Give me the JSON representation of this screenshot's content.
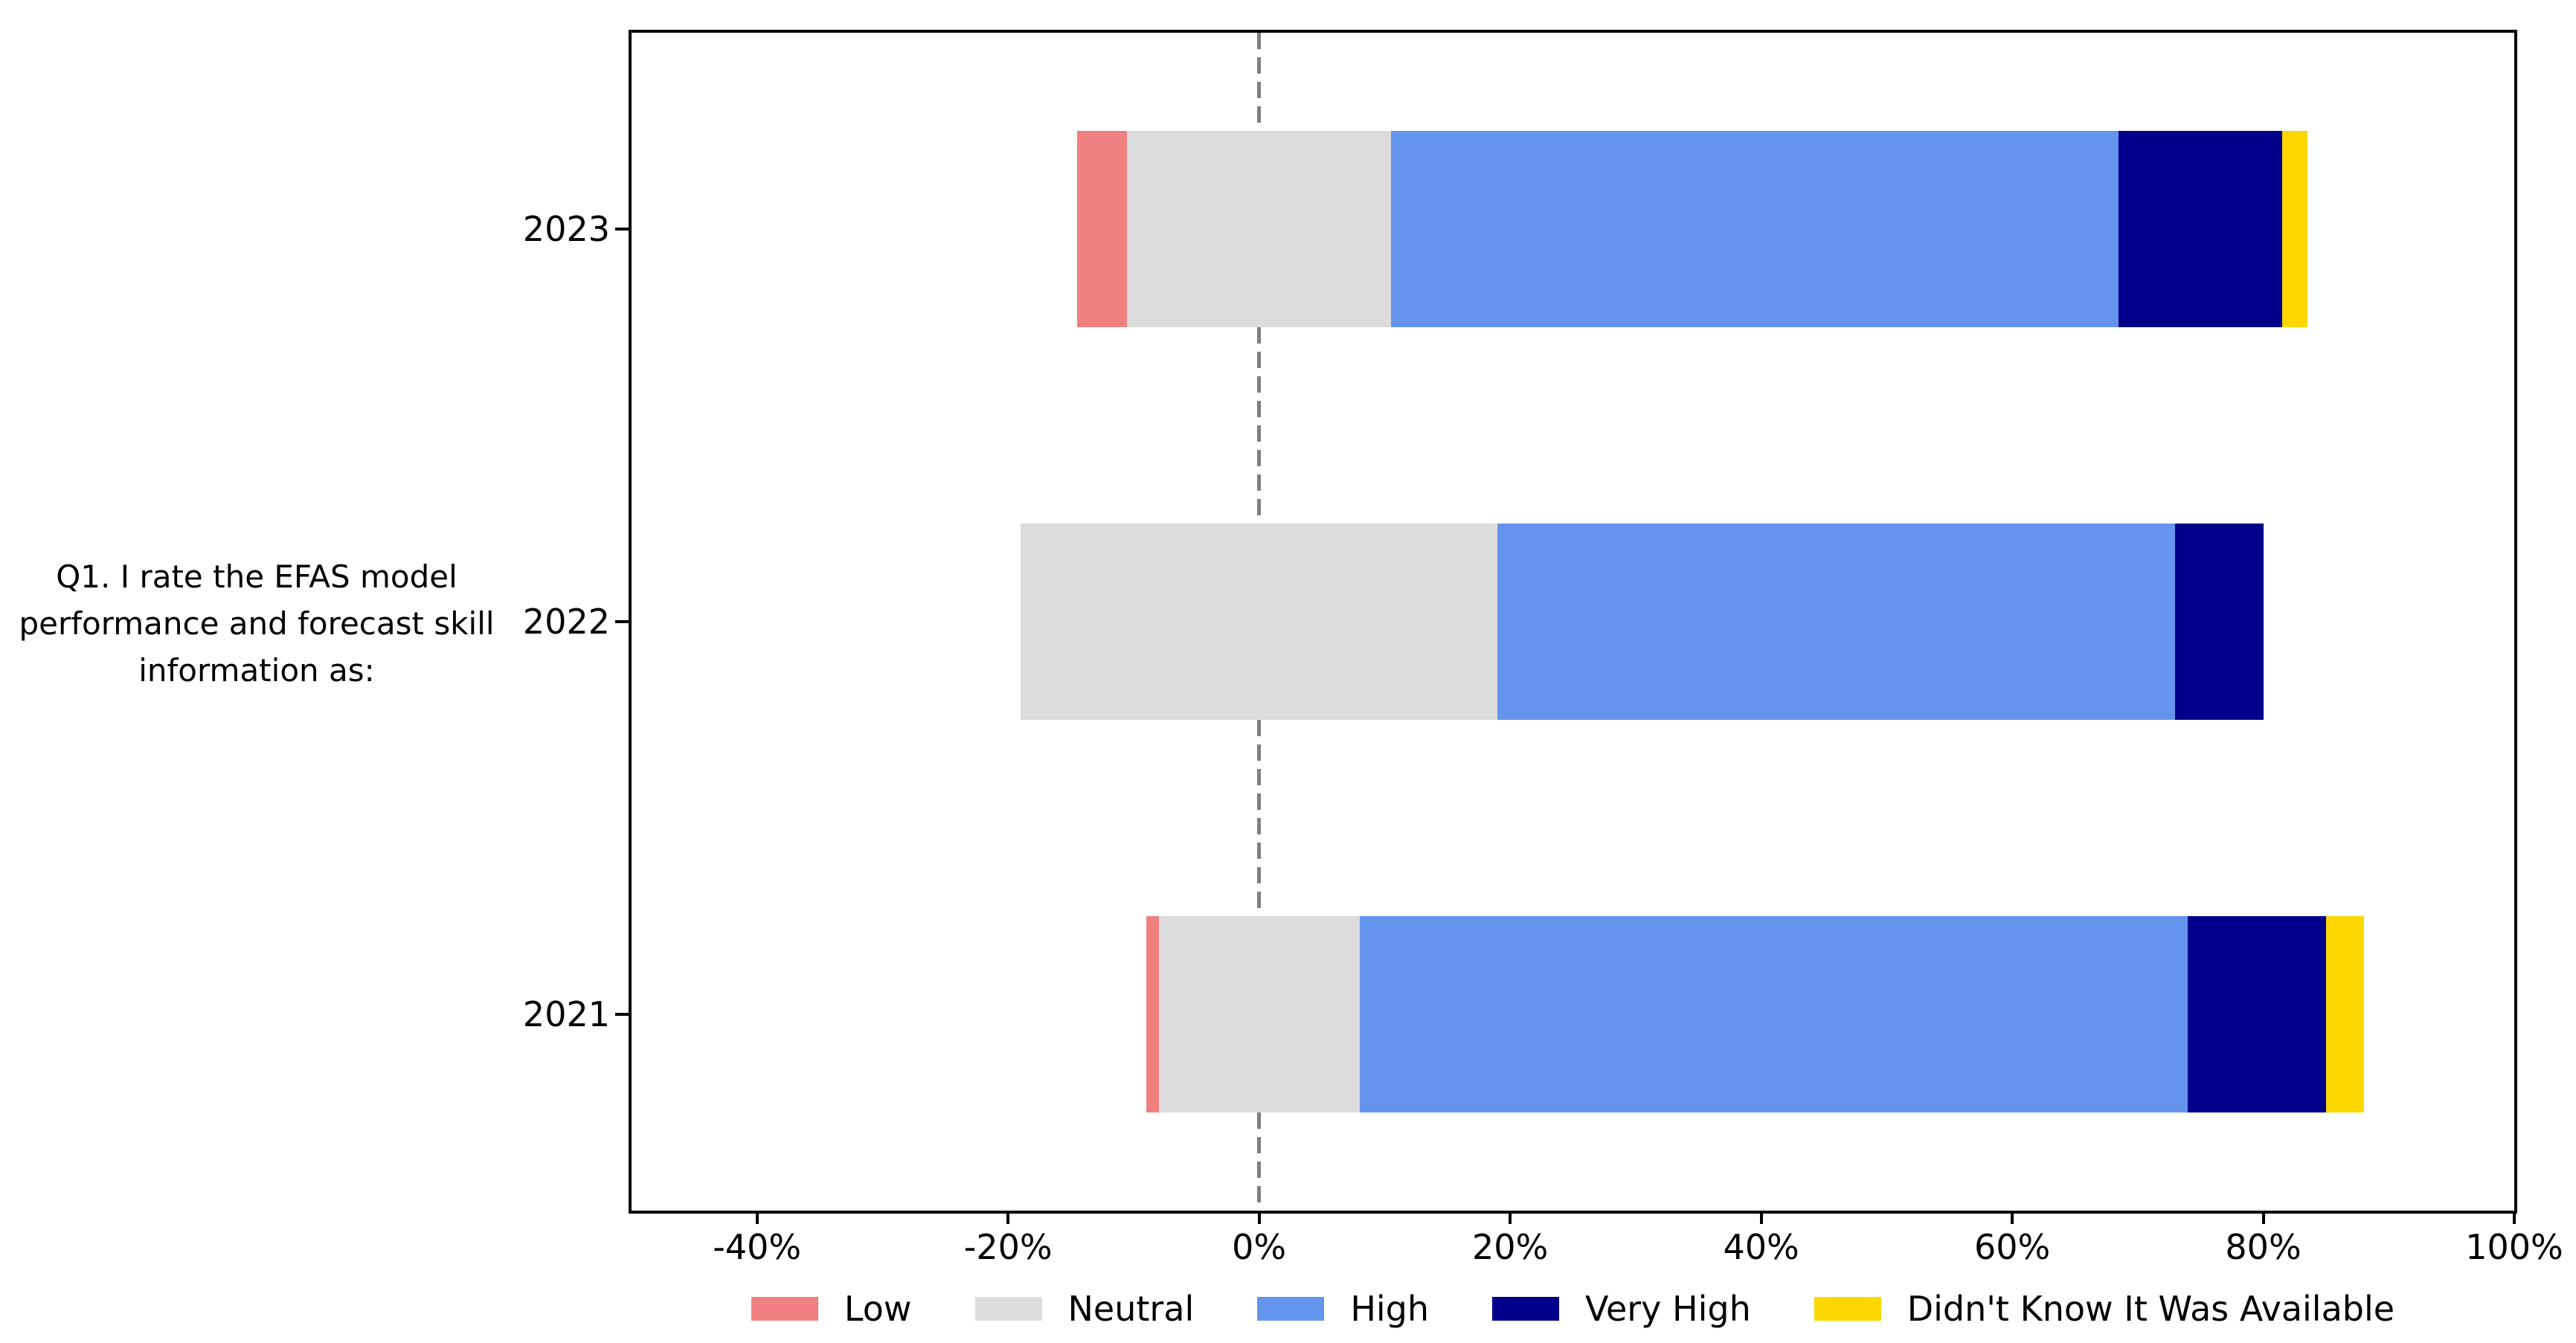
{
  "question": {
    "text": "Q1. I rate the EFAS model\nperformance and forecast skill\ninformation as:"
  },
  "chart_data": {
    "type": "bar",
    "variant": "diverging-stacked-horizontal",
    "units": "percent",
    "categories": [
      "2023",
      "2022",
      "2021"
    ],
    "series": [
      {
        "name": "Low",
        "color": "#F08080",
        "values": [
          4,
          0,
          1
        ]
      },
      {
        "name": "Neutral",
        "color": "#DCDCDC",
        "values": [
          21,
          38,
          16
        ]
      },
      {
        "name": "High",
        "color": "#6495ED",
        "values": [
          58,
          54,
          66
        ]
      },
      {
        "name": "Very High",
        "color": "#00008B",
        "values": [
          13,
          7,
          11
        ]
      },
      {
        "name": "Didn't Know It Was Available",
        "color": "#FFD700",
        "values": [
          2,
          0,
          3
        ]
      }
    ],
    "stack_rule": "bar left edge = -(Low + Neutral/2); Neutral straddles the 0% line",
    "xlim": [
      -50,
      100
    ],
    "x_tick_values": [
      -40,
      -20,
      0,
      20,
      40,
      60,
      80,
      100
    ],
    "x_tick_labels": [
      "-40%",
      "-20%",
      "0%",
      "20%",
      "40%",
      "60%",
      "80%",
      "100%"
    ],
    "zero_line": {
      "value": 0,
      "style": "dashed",
      "color": "#808080"
    },
    "grid": false,
    "legend_position": "bottom-center",
    "title": "",
    "xlabel": "",
    "ylabel": ""
  }
}
